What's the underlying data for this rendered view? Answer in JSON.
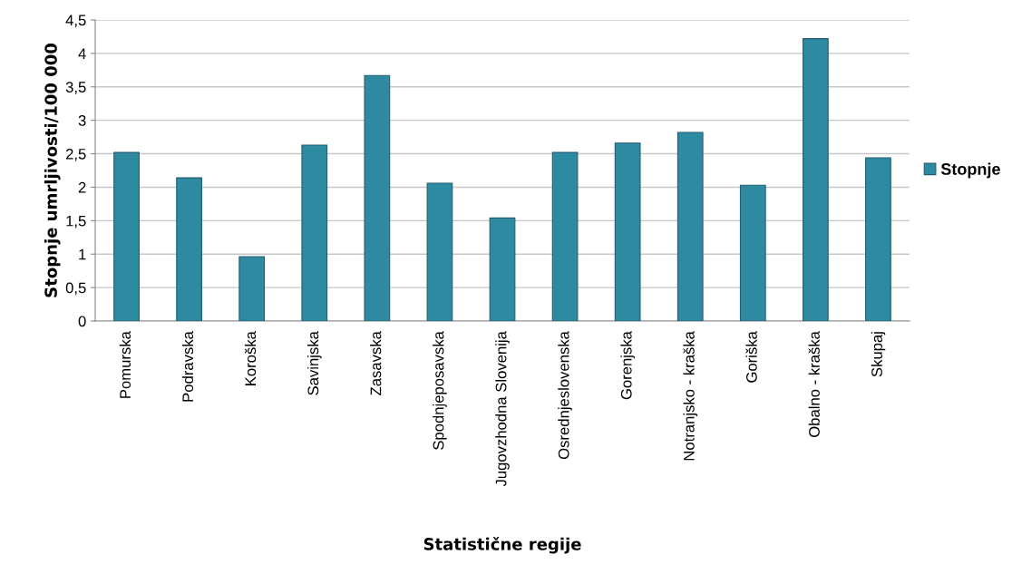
{
  "chart_data": {
    "type": "bar",
    "xlabel": "Statistične regije",
    "ylabel": "Stopnje umrljivosti/100 000",
    "categories": [
      "Pomurska",
      "Podravska",
      "Koroška",
      "Savinjska",
      "Zasavska",
      "Spodnjeposavska",
      "Jugovzhodna Slovenija",
      "Osrednjeslovenska",
      "Gorenjska",
      "Notranjsko - kraška",
      "Goriška",
      "Obalno - kraška",
      "Skupaj"
    ],
    "series": [
      {
        "name": "Stopnje",
        "color": "#2e8aa0",
        "values": [
          2.52,
          2.14,
          0.96,
          2.63,
          3.67,
          2.06,
          1.54,
          2.52,
          2.66,
          2.82,
          2.03,
          4.22,
          2.44
        ]
      }
    ],
    "ylim": [
      0,
      4.5
    ],
    "yticks": [
      0,
      {
        "value": 0.5,
        "label": "0,5"
      },
      1,
      {
        "value": 1.5,
        "label": "1,5"
      },
      2,
      {
        "value": 2.5,
        "label": "2,5"
      },
      3,
      {
        "value": 3.5,
        "label": "3,5"
      },
      4,
      {
        "value": 4.5,
        "label": "4,5"
      }
    ],
    "grid": "y",
    "legend": "right"
  }
}
